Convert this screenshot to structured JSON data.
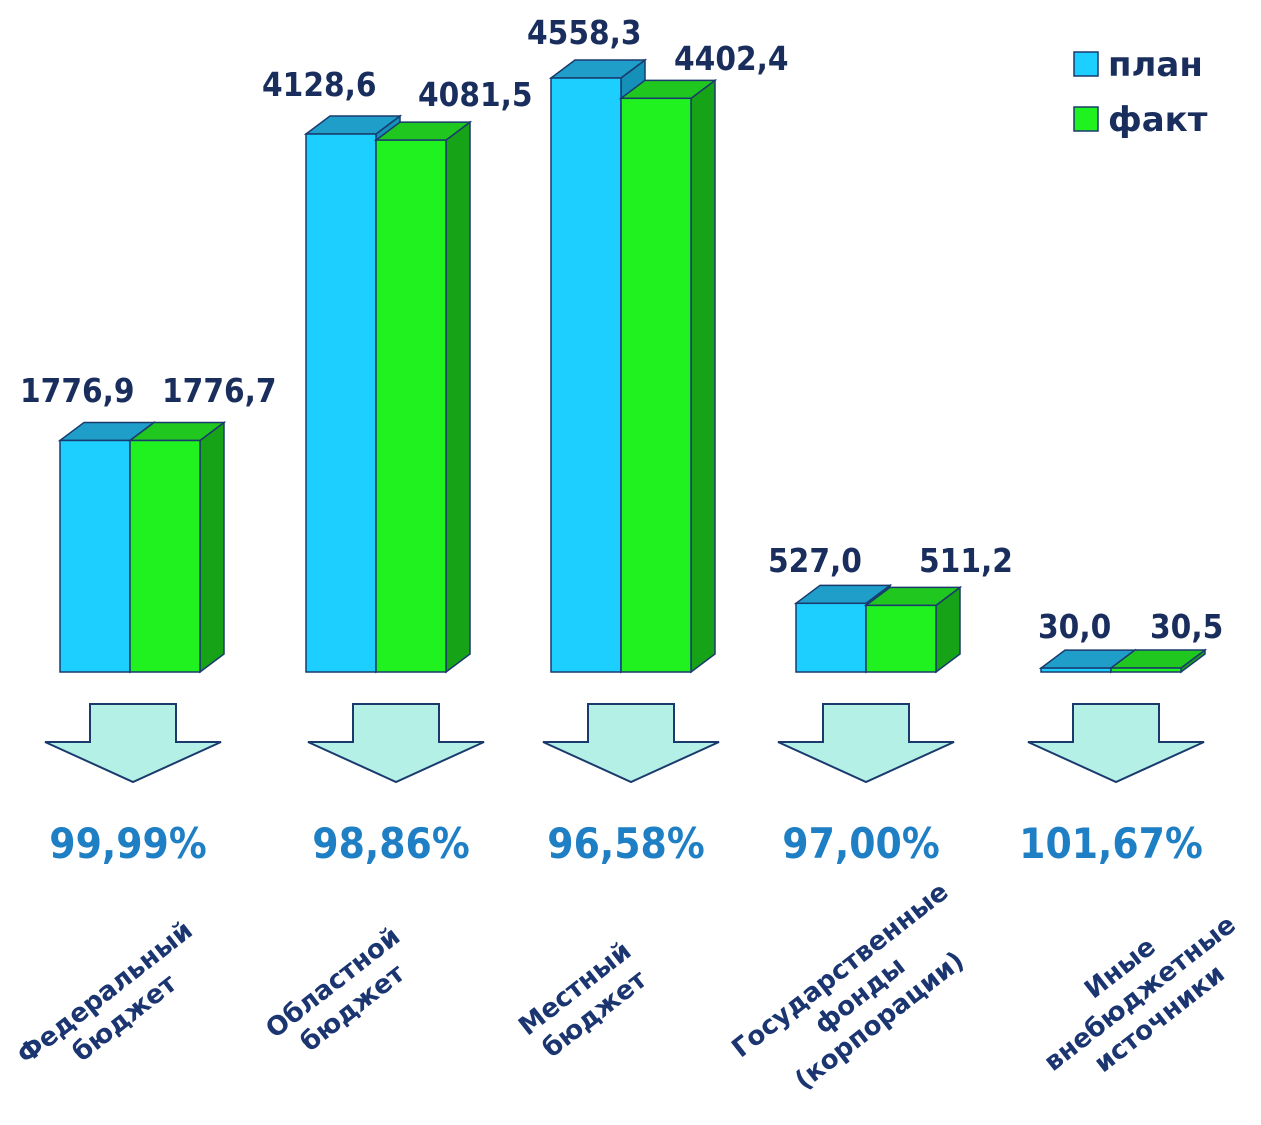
{
  "chart_data": {
    "type": "bar",
    "categories": [
      [
        "Федеральный",
        "бюджет"
      ],
      [
        "Областной",
        "бюджет"
      ],
      [
        "Местный",
        "бюджет"
      ],
      [
        "Государственные",
        "фонды",
        "(корпорации)"
      ],
      [
        "Иные",
        "внебюджетные",
        "источники"
      ]
    ],
    "series": [
      {
        "name": "план",
        "values": [
          1776.9,
          4128.6,
          4558.3,
          527.0,
          30.0
        ],
        "labels": [
          "1776,9",
          "4128,6",
          "4558,3",
          "527,0",
          "30,0"
        ],
        "color": "#1ccfff",
        "top_color": "#1e9ec8",
        "side_color": "#1590b8"
      },
      {
        "name": "факт",
        "values": [
          1776.7,
          4081.5,
          4402.4,
          511.2,
          30.5
        ],
        "labels": [
          "1776,7",
          "4081,5",
          "4402,4",
          "511,2",
          "30,5"
        ],
        "color": "#1ff21f",
        "top_color": "#1fc71f",
        "side_color": "#17a317"
      }
    ],
    "percent_labels": [
      "99,99%",
      "98,86%",
      "96,58%",
      "97,00%",
      "101,67%"
    ],
    "legend_position": "top-right",
    "arrow_color": "#b4f0e6"
  }
}
